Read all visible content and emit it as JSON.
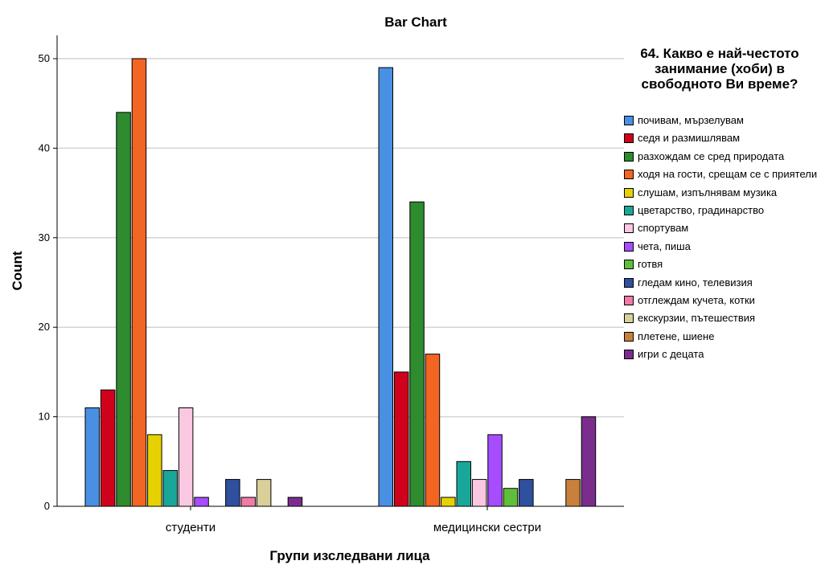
{
  "chart_data": {
    "type": "bar",
    "title": "Bar Chart",
    "xlabel": "Групи изследвани лица",
    "ylabel": "Count",
    "categories": [
      "студенти",
      "медицински сестри"
    ],
    "ylim": [
      0,
      52
    ],
    "yticks": [
      0,
      10,
      20,
      30,
      40,
      50
    ],
    "grid": true,
    "legend_title": "64. Какво е най-честото занимание (хоби) в свободното Ви време?",
    "legend_position": "right",
    "series": [
      {
        "name": "почивам, мързелувам",
        "color": "#4a90e2",
        "values": [
          11,
          49
        ]
      },
      {
        "name": "седя и размишлявам",
        "color": "#d0021b",
        "values": [
          13,
          15
        ]
      },
      {
        "name": "разхождам се сред природата",
        "color": "#2e8b2e",
        "values": [
          44,
          34
        ]
      },
      {
        "name": "ходя на гости, срещам се с приятели",
        "color": "#f26522",
        "values": [
          50,
          17
        ]
      },
      {
        "name": "слушам, изпълнявам музика",
        "color": "#e6d200",
        "values": [
          8,
          1
        ]
      },
      {
        "name": "цветарство, градинарство",
        "color": "#19a79a",
        "values": [
          4,
          5
        ]
      },
      {
        "name": "спортувам",
        "color": "#fbc8e2",
        "values": [
          11,
          3
        ]
      },
      {
        "name": "чета, пиша",
        "color": "#a64dff",
        "values": [
          1,
          8
        ]
      },
      {
        "name": "готвя",
        "color": "#5fbf3a",
        "values": [
          0,
          2
        ]
      },
      {
        "name": "гледам кино, телевизия",
        "color": "#2f4f9f",
        "values": [
          3,
          3
        ]
      },
      {
        "name": "отглеждам кучета, котки",
        "color": "#f07aa8",
        "values": [
          1,
          0
        ]
      },
      {
        "name": "екскурзии, пътешествия",
        "color": "#d8cf9a",
        "values": [
          3,
          0
        ]
      },
      {
        "name": "плетене, шиене",
        "color": "#c8813c",
        "values": [
          0,
          3
        ]
      },
      {
        "name": "игри с  децата",
        "color": "#7b2d8e",
        "values": [
          1,
          10
        ]
      }
    ]
  }
}
